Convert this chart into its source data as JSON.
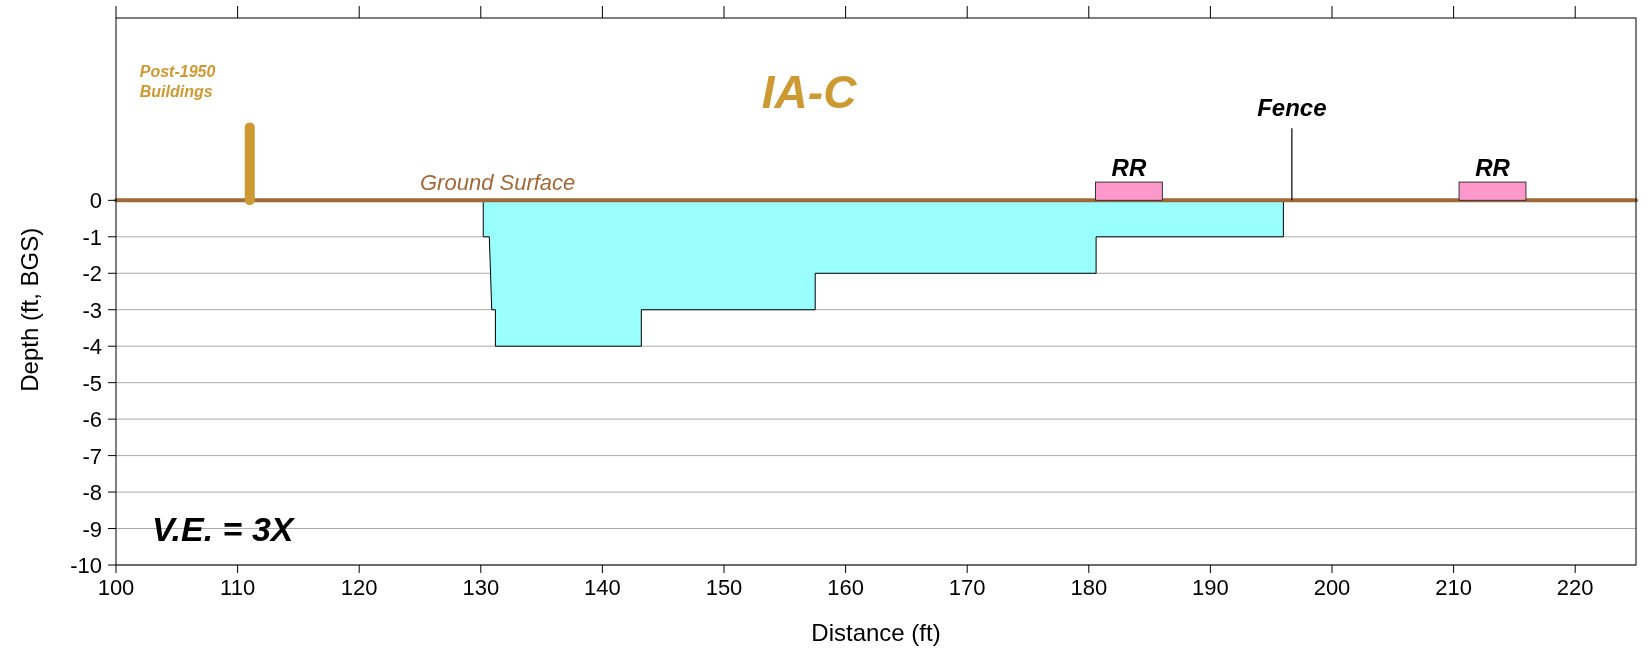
{
  "chart_data": {
    "type": "area",
    "title": "IA-C",
    "xlabel": "Distance (ft)",
    "ylabel": "Depth (ft, BGS)",
    "xlim": [
      100,
      225
    ],
    "xticks": [
      100,
      110,
      120,
      130,
      140,
      150,
      160,
      170,
      180,
      190,
      200,
      210,
      220
    ],
    "ylim": [
      -10,
      5
    ],
    "yticks": [
      0,
      -1,
      -2,
      -3,
      -4,
      -5,
      -6,
      -7,
      -8,
      -9,
      -10
    ],
    "grid": "y",
    "series": [
      {
        "color": "#99ffff",
        "x": [
          130.2,
          130.2,
          130.7,
          130.9,
          131.2,
          131.2,
          143.2,
          143.2,
          157.5,
          157.5,
          180.6,
          180.6,
          196,
          196
        ],
        "values": [
          0,
          -1,
          -1,
          -3,
          -3,
          -4,
          -4,
          -3,
          -3,
          -2,
          -2,
          -1,
          -1,
          0
        ]
      },
      {
        "type": "line",
        "name": "Ground Surface",
        "color": "#a0693a",
        "x": [
          100,
          225
        ],
        "values": [
          0,
          0
        ]
      },
      {
        "type": "line",
        "name": "Post-1950 Buildings",
        "color": "#cc9933",
        "x": [
          111,
          111
        ],
        "values": [
          0,
          2
        ]
      },
      {
        "type": "bar",
        "name": "RR",
        "color": "#ff99cc",
        "x": [
          183.3,
          213.2
        ],
        "values": [
          0.5,
          0.5
        ]
      }
    ],
    "annotations": [
      {
        "text": "Fence",
        "x": 196.7,
        "y": 0
      },
      "V.E. = 3X"
    ]
  }
}
